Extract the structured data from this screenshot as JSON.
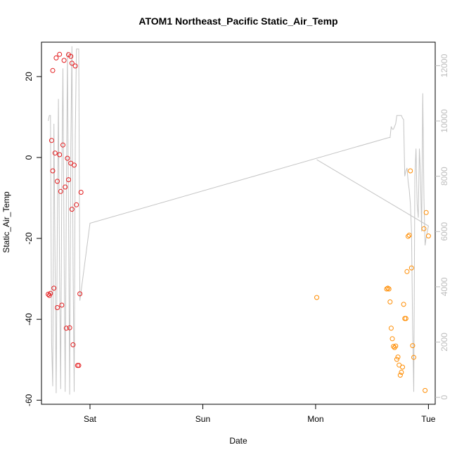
{
  "chart_data": {
    "type": "scatter",
    "title": "ATOM1 Northeast_Pacific Static_Air_Temp",
    "xlabel": "Date",
    "ylabel": "Static_Air_Temp",
    "x_units": "days since Fri 00:00",
    "xlim": [
      0.57,
      4.06
    ],
    "x_ticks": [
      {
        "value": 1,
        "label": "Sat"
      },
      {
        "value": 2,
        "label": "Sun"
      },
      {
        "value": 3,
        "label": "Mon"
      },
      {
        "value": 4,
        "label": "Tue"
      }
    ],
    "ylim": [
      -61,
      28.5
    ],
    "y_ticks": [
      -60,
      -40,
      -20,
      0,
      20
    ],
    "y2_ticks": [
      0,
      2000,
      4000,
      6000,
      8000,
      10000,
      12000
    ],
    "y2lim": [
      -250,
      12850
    ],
    "grid": false,
    "colors": {
      "series_early": "#e31a1c",
      "series_late": "#ff8c00",
      "altitude_line": "#c4c4c4",
      "secondary_axis": "#bdbdbd"
    },
    "series": [
      {
        "color": "#e31a1c",
        "points": [
          [
            0.63,
            -33.8
          ],
          [
            0.64,
            -34.1
          ],
          [
            0.65,
            -33.6
          ],
          [
            0.66,
            4.2
          ],
          [
            0.67,
            21.5
          ],
          [
            0.67,
            -3.3
          ],
          [
            0.68,
            -32.3
          ],
          [
            0.69,
            1.1
          ],
          [
            0.7,
            24.6
          ],
          [
            0.71,
            -5.9
          ],
          [
            0.71,
            -37.1
          ],
          [
            0.73,
            0.7
          ],
          [
            0.73,
            25.5
          ],
          [
            0.74,
            -8.4
          ],
          [
            0.75,
            -36.5
          ],
          [
            0.76,
            3.1
          ],
          [
            0.77,
            24.0
          ],
          [
            0.78,
            -7.3
          ],
          [
            0.79,
            -42.2
          ],
          [
            0.8,
            -0.2
          ],
          [
            0.81,
            25.4
          ],
          [
            0.81,
            -5.5
          ],
          [
            0.82,
            -42.1
          ],
          [
            0.83,
            -1.4
          ],
          [
            0.83,
            25.0
          ],
          [
            0.84,
            23.3
          ],
          [
            0.84,
            -12.8
          ],
          [
            0.85,
            -46.3
          ],
          [
            0.86,
            -1.9
          ],
          [
            0.87,
            22.6
          ],
          [
            0.88,
            -11.7
          ],
          [
            0.89,
            -51.4
          ],
          [
            0.9,
            -51.4
          ],
          [
            0.91,
            -33.7
          ],
          [
            0.92,
            -8.6
          ]
        ]
      },
      {
        "color": "#ff8c00",
        "points": [
          [
            3.01,
            -34.6
          ],
          [
            3.63,
            -32.5
          ],
          [
            3.64,
            -32.3
          ],
          [
            3.65,
            -32.5
          ],
          [
            3.66,
            -35.7
          ],
          [
            3.67,
            -42.2
          ],
          [
            3.68,
            -44.8
          ],
          [
            3.69,
            -46.7
          ],
          [
            3.7,
            -47.0
          ],
          [
            3.71,
            -46.6
          ],
          [
            3.72,
            -49.9
          ],
          [
            3.73,
            -49.3
          ],
          [
            3.74,
            -51.3
          ],
          [
            3.75,
            -53.8
          ],
          [
            3.76,
            -53.1
          ],
          [
            3.77,
            -51.8
          ],
          [
            3.78,
            -36.3
          ],
          [
            3.79,
            -39.8
          ],
          [
            3.8,
            -39.8
          ],
          [
            3.81,
            -28.2
          ],
          [
            3.82,
            -19.5
          ],
          [
            3.83,
            -19.2
          ],
          [
            3.84,
            -3.3
          ],
          [
            3.85,
            -27.3
          ],
          [
            3.86,
            -46.5
          ],
          [
            3.87,
            -49.4
          ],
          [
            3.96,
            -17.6
          ],
          [
            3.97,
            -57.6
          ],
          [
            3.98,
            -13.6
          ],
          [
            4.0,
            -19.4
          ]
        ]
      }
    ],
    "altitude_line": [
      [
        0.63,
        10000
      ],
      [
        0.64,
        10200
      ],
      [
        0.65,
        10200
      ],
      [
        0.66,
        2000
      ],
      [
        0.67,
        400
      ],
      [
        0.68,
        9900
      ],
      [
        0.69,
        5000
      ],
      [
        0.7,
        150
      ],
      [
        0.71,
        6000
      ],
      [
        0.72,
        10800
      ],
      [
        0.73,
        4500
      ],
      [
        0.74,
        300
      ],
      [
        0.75,
        8000
      ],
      [
        0.76,
        11900
      ],
      [
        0.77,
        5500
      ],
      [
        0.78,
        200
      ],
      [
        0.79,
        7000
      ],
      [
        0.8,
        12500
      ],
      [
        0.81,
        6500
      ],
      [
        0.82,
        100
      ],
      [
        0.83,
        9000
      ],
      [
        0.84,
        12700
      ],
      [
        0.85,
        4800
      ],
      [
        0.86,
        200
      ],
      [
        0.87,
        9500
      ],
      [
        0.88,
        12600
      ],
      [
        0.89,
        12600
      ],
      [
        0.9,
        12600
      ],
      [
        0.91,
        3500
      ],
      [
        1.0,
        6300
      ],
      [
        3.65,
        9400
      ],
      [
        3.66,
        9400
      ],
      [
        3.67,
        9800
      ],
      [
        3.68,
        9700
      ],
      [
        3.69,
        9700
      ],
      [
        3.7,
        9800
      ],
      [
        3.71,
        9900
      ],
      [
        3.72,
        10200
      ],
      [
        3.73,
        10200
      ],
      [
        3.74,
        10200
      ],
      [
        3.75,
        10200
      ],
      [
        3.76,
        10200
      ],
      [
        3.77,
        10100
      ],
      [
        3.78,
        10050
      ],
      [
        3.79,
        8000
      ],
      [
        3.8,
        8200
      ],
      [
        3.81,
        8300
      ],
      [
        3.82,
        7800
      ],
      [
        3.83,
        7500
      ],
      [
        3.84,
        7000
      ],
      [
        3.85,
        6000
      ],
      [
        3.86,
        2500
      ],
      [
        3.87,
        200
      ],
      [
        3.88,
        8000
      ],
      [
        3.89,
        9000
      ],
      [
        3.9,
        7000
      ],
      [
        3.91,
        6500
      ],
      [
        3.92,
        9000
      ],
      [
        3.93,
        8000
      ],
      [
        3.94,
        6000
      ],
      [
        3.95,
        11000
      ],
      [
        3.96,
        7200
      ],
      [
        3.97,
        5500
      ],
      [
        3.98,
        5800
      ],
      [
        4.0,
        6200
      ],
      [
        3.01,
        8600
      ]
    ]
  }
}
